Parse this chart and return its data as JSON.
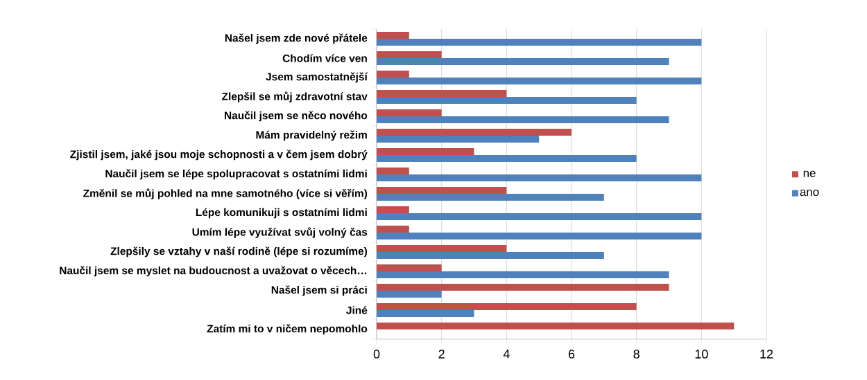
{
  "chart_data": {
    "type": "bar",
    "orientation": "horizontal",
    "categories": [
      "Našel jsem zde nové přátele",
      "Chodím více ven",
      "Jsem samostatnější",
      "Zlepšil se můj zdravotní stav",
      "Naučil jsem se něco nového",
      "Mám pravidelný režim",
      "Zjistil jsem, jaké jsou moje schopnosti a v čem jsem dobrý",
      "Naučil jsem se lépe spolupracovat s ostatními lidmi",
      "Změnil se můj pohled na mne samotného (více si věřím)",
      "Lépe komunikuji s ostatními lidmi",
      "Umím lépe využívat svůj volný čas",
      "Zlepšily se vztahy v naší rodině (lépe si rozumíme)",
      "Naučil jsem se myslet na budoucnost a uvažovat o věcech…",
      "Našel jsem si práci",
      "Jiné",
      "Zatím mi to v ničem nepomohlo"
    ],
    "series": [
      {
        "name": "ne",
        "color": "#c0504d",
        "values": [
          1,
          2,
          1,
          4,
          2,
          6,
          3,
          1,
          4,
          1,
          1,
          4,
          2,
          9,
          8,
          11
        ]
      },
      {
        "name": "ano",
        "color": "#4f81bd",
        "values": [
          10,
          9,
          10,
          8,
          9,
          5,
          8,
          10,
          7,
          10,
          10,
          7,
          9,
          2,
          3,
          0
        ]
      }
    ],
    "xlim": [
      0,
      12
    ],
    "xticks": [
      0,
      2,
      4,
      6,
      8,
      10,
      12
    ],
    "grid": "x",
    "legend": "right"
  }
}
